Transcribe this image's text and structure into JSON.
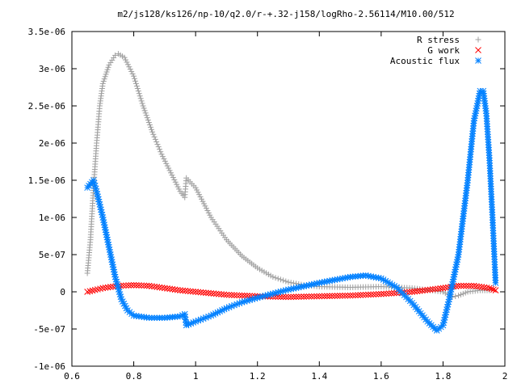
{
  "chart_data": {
    "type": "scatter",
    "title": "m2/js128/ks126/np-10/q2.0/r-+.32-j158/logRho-2.56114/M10.00/512",
    "xlabel": "",
    "ylabel": "",
    "xlim": [
      0.6,
      2.0
    ],
    "ylim": [
      -1e-06,
      3.5e-06
    ],
    "grid": false,
    "legend_position": "top-right",
    "xticks": [
      0.6,
      0.8,
      1.0,
      1.2,
      1.4,
      1.6,
      1.8,
      2.0
    ],
    "xtick_labels": [
      "0.6",
      "0.8",
      "1",
      "1.2",
      "1.4",
      "1.6",
      "1.8",
      "2"
    ],
    "yticks": [
      -1e-06,
      -5e-07,
      0,
      5e-07,
      1e-06,
      1.5e-06,
      2e-06,
      2.5e-06,
      3e-06,
      3.5e-06
    ],
    "ytick_labels": [
      "-1e-06",
      "-5e-07",
      "0",
      "5e-07",
      "1e-06",
      "1.5e-06",
      "2e-06",
      "2.5e-06",
      "3e-06",
      "3.5e-06"
    ],
    "series": [
      {
        "name": "R stress",
        "marker": "plus",
        "color": "#a0a0a0",
        "points": [
          [
            0.65,
            2.5e-07
          ],
          [
            0.66,
            7e-07
          ],
          [
            0.67,
            1.4e-06
          ],
          [
            0.68,
            2e-06
          ],
          [
            0.69,
            2.5e-06
          ],
          [
            0.7,
            2.8e-06
          ],
          [
            0.72,
            3.05e-06
          ],
          [
            0.74,
            3.18e-06
          ],
          [
            0.75,
            3.2e-06
          ],
          [
            0.77,
            3.15e-06
          ],
          [
            0.8,
            2.9e-06
          ],
          [
            0.83,
            2.5e-06
          ],
          [
            0.86,
            2.15e-06
          ],
          [
            0.89,
            1.85e-06
          ],
          [
            0.92,
            1.6e-06
          ],
          [
            0.95,
            1.35e-06
          ],
          [
            0.965,
            1.27e-06
          ],
          [
            0.97,
            1.53e-06
          ],
          [
            1.0,
            1.4e-06
          ],
          [
            1.05,
            1e-06
          ],
          [
            1.1,
            7e-07
          ],
          [
            1.15,
            4.8e-07
          ],
          [
            1.2,
            3.2e-07
          ],
          [
            1.25,
            2e-07
          ],
          [
            1.3,
            1.3e-07
          ],
          [
            1.35,
            9e-08
          ],
          [
            1.4,
            7e-08
          ],
          [
            1.5,
            6e-08
          ],
          [
            1.6,
            7e-08
          ],
          [
            1.7,
            5e-08
          ],
          [
            1.8,
            0.0
          ],
          [
            1.83,
            -7e-08
          ],
          [
            1.85,
            -5e-08
          ],
          [
            1.88,
            0.0
          ],
          [
            1.92,
            2e-08
          ],
          [
            1.95,
            2e-08
          ]
        ]
      },
      {
        "name": "G work",
        "marker": "cross",
        "color": "#ff0000",
        "points": [
          [
            0.65,
            0.0
          ],
          [
            0.7,
            5e-08
          ],
          [
            0.75,
            8e-08
          ],
          [
            0.8,
            9e-08
          ],
          [
            0.85,
            8e-08
          ],
          [
            0.9,
            5e-08
          ],
          [
            0.95,
            2e-08
          ],
          [
            1.0,
            0.0
          ],
          [
            1.05,
            -2e-08
          ],
          [
            1.1,
            -4e-08
          ],
          [
            1.2,
            -6e-08
          ],
          [
            1.3,
            -7e-08
          ],
          [
            1.4,
            -6e-08
          ],
          [
            1.5,
            -5e-08
          ],
          [
            1.6,
            -3e-08
          ],
          [
            1.7,
            0.0
          ],
          [
            1.8,
            5e-08
          ],
          [
            1.85,
            8e-08
          ],
          [
            1.9,
            8e-08
          ],
          [
            1.95,
            5e-08
          ],
          [
            1.97,
            2e-08
          ]
        ]
      },
      {
        "name": "Acoustic flux",
        "marker": "star",
        "color": "#0080ff",
        "points": [
          [
            0.65,
            1.4e-06
          ],
          [
            0.66,
            1.45e-06
          ],
          [
            0.67,
            1.5e-06
          ],
          [
            0.68,
            1.35e-06
          ],
          [
            0.7,
            1e-06
          ],
          [
            0.72,
            6e-07
          ],
          [
            0.74,
            2e-07
          ],
          [
            0.76,
            -1e-07
          ],
          [
            0.78,
            -2.5e-07
          ],
          [
            0.8,
            -3.2e-07
          ],
          [
            0.85,
            -3.5e-07
          ],
          [
            0.9,
            -3.5e-07
          ],
          [
            0.95,
            -3.3e-07
          ],
          [
            0.965,
            -3e-07
          ],
          [
            0.97,
            -4.5e-07
          ],
          [
            1.0,
            -4e-07
          ],
          [
            1.05,
            -3.2e-07
          ],
          [
            1.1,
            -2.2e-07
          ],
          [
            1.15,
            -1.4e-07
          ],
          [
            1.2,
            -8e-08
          ],
          [
            1.3,
            3e-08
          ],
          [
            1.4,
            1.2e-07
          ],
          [
            1.5,
            2e-07
          ],
          [
            1.55,
            2.2e-07
          ],
          [
            1.6,
            1.8e-07
          ],
          [
            1.65,
            6e-08
          ],
          [
            1.7,
            -1.5e-07
          ],
          [
            1.75,
            -4e-07
          ],
          [
            1.78,
            -5.2e-07
          ],
          [
            1.8,
            -4.5e-07
          ],
          [
            1.82,
            -1e-07
          ],
          [
            1.85,
            5e-07
          ],
          [
            1.88,
            1.5e-06
          ],
          [
            1.9,
            2.3e-06
          ],
          [
            1.92,
            2.7e-06
          ],
          [
            1.93,
            2.7e-06
          ],
          [
            1.94,
            2.4e-06
          ],
          [
            1.95,
            1.8e-06
          ],
          [
            1.96,
            1e-06
          ],
          [
            1.97,
            1.2e-07
          ]
        ]
      }
    ]
  }
}
